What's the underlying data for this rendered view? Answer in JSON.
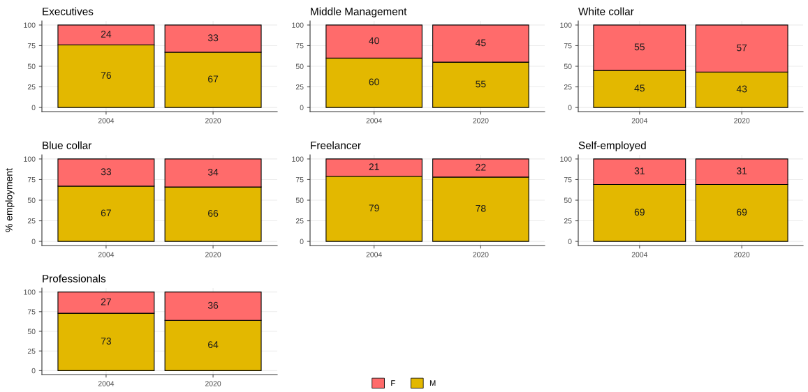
{
  "chart_data": [
    {
      "type": "bar",
      "title": "Executives",
      "categories": [
        "2004",
        "2020"
      ],
      "stacked": true,
      "data_labels": true,
      "grid": true,
      "legend": "bottom",
      "ylim": [
        -5,
        105
      ],
      "yticks": [
        0,
        25,
        50,
        75,
        100
      ],
      "series": [
        {
          "name": "M",
          "color": "#e3b800",
          "values": [
            76,
            67
          ]
        },
        {
          "name": "F",
          "color": "#ff6b6b",
          "values": [
            24,
            33
          ]
        }
      ]
    },
    {
      "type": "bar",
      "title": "Middle Management",
      "categories": [
        "2004",
        "2020"
      ],
      "stacked": true,
      "data_labels": true,
      "grid": true,
      "ylim": [
        -5,
        105
      ],
      "yticks": [
        0,
        25,
        50,
        75,
        100
      ],
      "series": [
        {
          "color": "#e3b800",
          "values": [
            60,
            55
          ]
        },
        {
          "color": "#ff6b6b",
          "values": [
            40,
            45
          ]
        }
      ]
    },
    {
      "type": "bar",
      "title": "White collar",
      "categories": [
        "2004",
        "2020"
      ],
      "stacked": true,
      "data_labels": true,
      "grid": true,
      "ylim": [
        -5,
        105
      ],
      "yticks": [
        0,
        25,
        50,
        75,
        100
      ],
      "series": [
        {
          "color": "#e3b800",
          "values": [
            45,
            43
          ]
        },
        {
          "color": "#ff6b6b",
          "values": [
            55,
            57
          ]
        }
      ]
    },
    {
      "type": "bar",
      "title": "Blue collar",
      "ylabel": "% employment",
      "categories": [
        "2004",
        "2020"
      ],
      "stacked": true,
      "data_labels": true,
      "grid": true,
      "ylim": [
        -5,
        105
      ],
      "yticks": [
        0,
        25,
        50,
        75,
        100
      ],
      "series": [
        {
          "color": "#e3b800",
          "values": [
            67,
            66
          ]
        },
        {
          "color": "#ff6b6b",
          "values": [
            33,
            34
          ]
        }
      ]
    },
    {
      "type": "bar",
      "title": "Freelancer",
      "categories": [
        "2004",
        "2020"
      ],
      "stacked": true,
      "data_labels": true,
      "grid": true,
      "ylim": [
        -5,
        105
      ],
      "yticks": [
        0,
        25,
        50,
        75,
        100
      ],
      "series": [
        {
          "color": "#e3b800",
          "values": [
            79,
            78
          ]
        },
        {
          "color": "#ff6b6b",
          "values": [
            21,
            22
          ]
        }
      ]
    },
    {
      "type": "bar",
      "title": "Self-employed",
      "categories": [
        "2004",
        "2020"
      ],
      "stacked": true,
      "data_labels": true,
      "grid": true,
      "ylim": [
        -5,
        105
      ],
      "yticks": [
        0,
        25,
        50,
        75,
        100
      ],
      "series": [
        {
          "color": "#e3b800",
          "values": [
            69,
            69
          ]
        },
        {
          "color": "#ff6b6b",
          "values": [
            31,
            31
          ]
        }
      ]
    },
    {
      "type": "bar",
      "title": "Professionals",
      "categories": [
        "2004",
        "2020"
      ],
      "stacked": true,
      "data_labels": true,
      "grid": true,
      "ylim": [
        -5,
        105
      ],
      "yticks": [
        0,
        25,
        50,
        75,
        100
      ],
      "series": [
        {
          "color": "#e3b800",
          "values": [
            73,
            64
          ]
        },
        {
          "color": "#ff6b6b",
          "values": [
            27,
            36
          ]
        }
      ]
    }
  ]
}
